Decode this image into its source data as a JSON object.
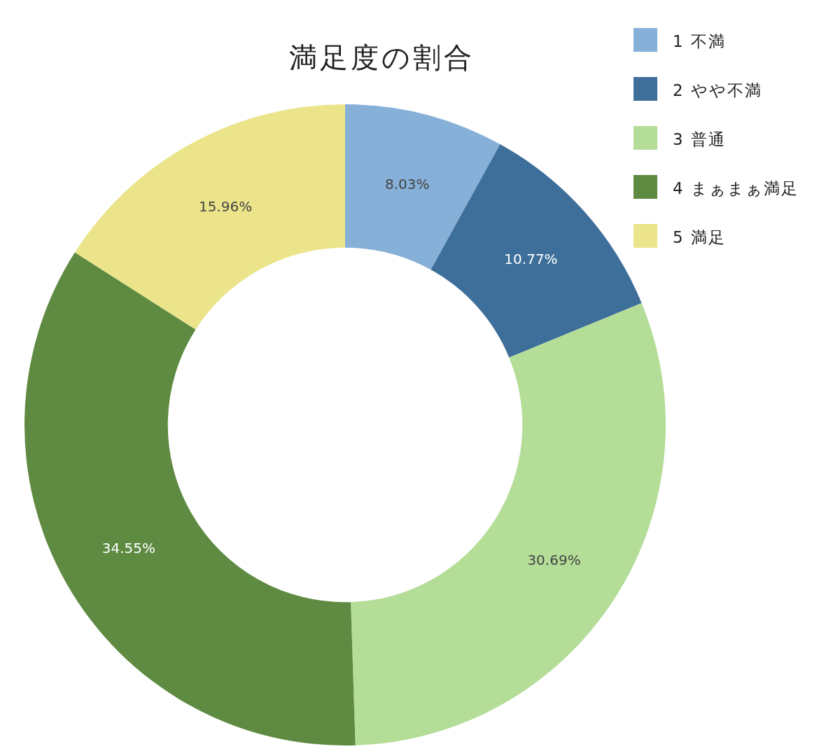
{
  "chart_data": {
    "type": "donut",
    "title": "満足度の割合",
    "categories": [
      "1  不満",
      "2  やや不満",
      "3  普通",
      "4  まぁまぁ満足",
      "5  満足"
    ],
    "values": [
      8.03,
      10.77,
      30.69,
      34.55,
      15.96
    ],
    "value_labels": [
      "8.03%",
      "10.77%",
      "30.69%",
      "34.55%",
      "15.96%"
    ],
    "colors": [
      "#86b0d8",
      "#3e6f9b",
      "#b4dd98",
      "#5e8a41",
      "#ebe48a"
    ],
    "legend": "top right"
  }
}
